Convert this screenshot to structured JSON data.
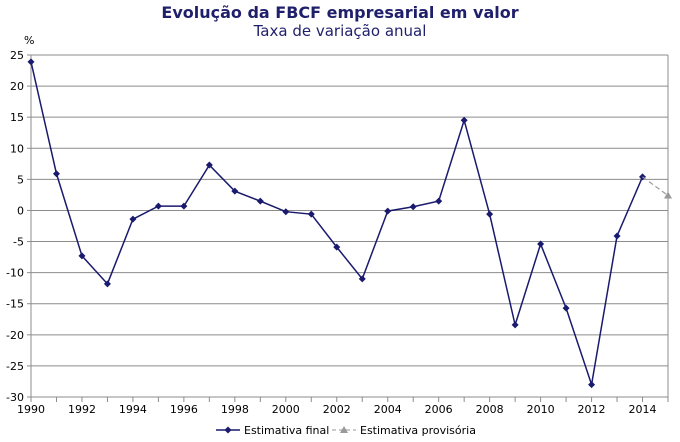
{
  "chart_data": {
    "type": "line",
    "title": "Evolução da FBCF empresarial em valor",
    "subtitle": "Taxa de variação anual",
    "ylabel": "%",
    "xlabel": "",
    "ylim": [
      -30,
      25
    ],
    "xlim": [
      1990,
      2015
    ],
    "yticks": [
      25,
      20,
      15,
      10,
      5,
      0,
      -5,
      -10,
      -15,
      -20,
      -25,
      -30
    ],
    "xtick_labels": [
      "1990",
      "1992",
      "1994",
      "1996",
      "1998",
      "2000",
      "2002",
      "2004",
      "2006",
      "2008",
      "2010",
      "2012",
      "2014"
    ],
    "grid": true,
    "legend_position": "bottom",
    "series": [
      {
        "name": "Estimativa final",
        "color": "#1a1a6e",
        "style": "solid",
        "marker": "diamond",
        "x": [
          1990,
          1991,
          1992,
          1993,
          1994,
          1995,
          1996,
          1997,
          1998,
          1999,
          2000,
          2001,
          2002,
          2003,
          2004,
          2005,
          2006,
          2007,
          2008,
          2009,
          2010,
          2011,
          2012,
          2013,
          2014
        ],
        "y": [
          23.9,
          5.9,
          -7.3,
          -11.8,
          -1.4,
          0.7,
          0.7,
          7.3,
          3.1,
          1.5,
          -0.2,
          -0.6,
          -5.9,
          -11.0,
          -0.1,
          0.6,
          1.5,
          14.5,
          -0.6,
          -18.4,
          -5.4,
          -15.7,
          -28.0,
          -4.1,
          5.4
        ]
      },
      {
        "name": "Estimativa provisória",
        "color": "#999999",
        "style": "dashed",
        "marker": "triangle",
        "x": [
          2014,
          2015
        ],
        "y": [
          5.4,
          2.4
        ]
      }
    ]
  }
}
